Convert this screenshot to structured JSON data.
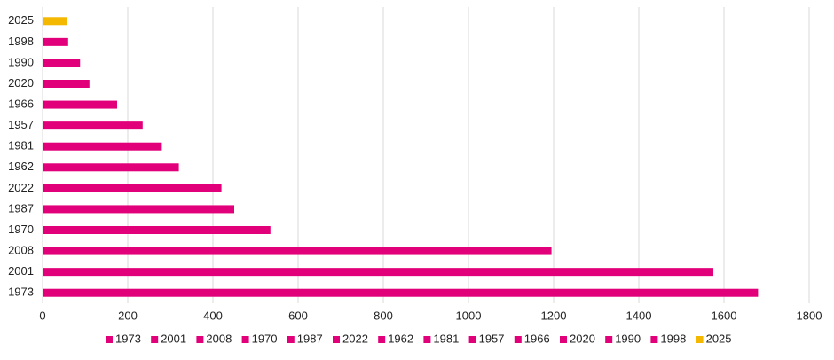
{
  "chart_data": {
    "type": "hbar",
    "categories": [
      "1973",
      "2001",
      "2008",
      "1970",
      "1987",
      "2022",
      "1962",
      "1981",
      "1957",
      "1966",
      "2020",
      "1990",
      "1998",
      "2025"
    ],
    "values": [
      1680,
      1575,
      1195,
      535,
      450,
      420,
      320,
      280,
      235,
      175,
      110,
      88,
      60,
      58
    ],
    "colors": [
      "#e2007a",
      "#e2007a",
      "#e2007a",
      "#e2007a",
      "#e2007a",
      "#e2007a",
      "#e2007a",
      "#e2007a",
      "#e2007a",
      "#e2007a",
      "#e2007a",
      "#e2007a",
      "#e2007a",
      "#f5b800"
    ],
    "xlim": [
      0,
      1800
    ],
    "xticks": [
      0,
      200,
      400,
      600,
      800,
      1000,
      1200,
      1400,
      1600,
      1800
    ],
    "grid": true,
    "legend": "bottom"
  }
}
